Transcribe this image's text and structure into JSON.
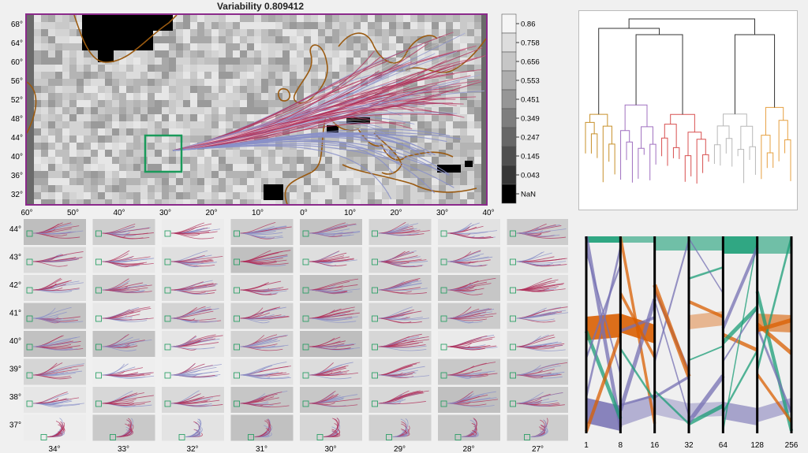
{
  "title": "Variability 0.809412",
  "main_map": {
    "lat_ticks": [
      "68°",
      "64°",
      "60°",
      "56°",
      "52°",
      "48°",
      "44°",
      "40°",
      "36°",
      "32°"
    ],
    "lon_ticks": [
      "60°",
      "50°",
      "40°",
      "30°",
      "20°",
      "10°",
      "0°",
      "10°",
      "20°",
      "30°",
      "40°"
    ]
  },
  "colorbar": {
    "labels": [
      "0.86",
      "0.758",
      "0.656",
      "0.553",
      "0.451",
      "0.349",
      "0.247",
      "0.145",
      "0.043",
      "NaN"
    ]
  },
  "small_multiples": {
    "row_labels": [
      "44°",
      "43°",
      "42°",
      "41°",
      "40°",
      "39°",
      "38°",
      "37°"
    ],
    "col_labels": [
      "34°",
      "33°",
      "32°",
      "31°",
      "30°",
      "29°",
      "28°",
      "27°"
    ]
  },
  "sankey": {
    "axis_labels": [
      "1",
      "8",
      "16",
      "32",
      "64",
      "128",
      "256"
    ]
  },
  "colors": {
    "map_border": "#8b2a8b",
    "selection_box": "#1a9a5a",
    "coast": "#9a5a10",
    "traj_red": "#b0305a",
    "traj_blue": "#8a90c8",
    "sankey_green": "#1b9e77",
    "sankey_orange": "#d95f02",
    "sankey_purple": "#7570b3"
  }
}
